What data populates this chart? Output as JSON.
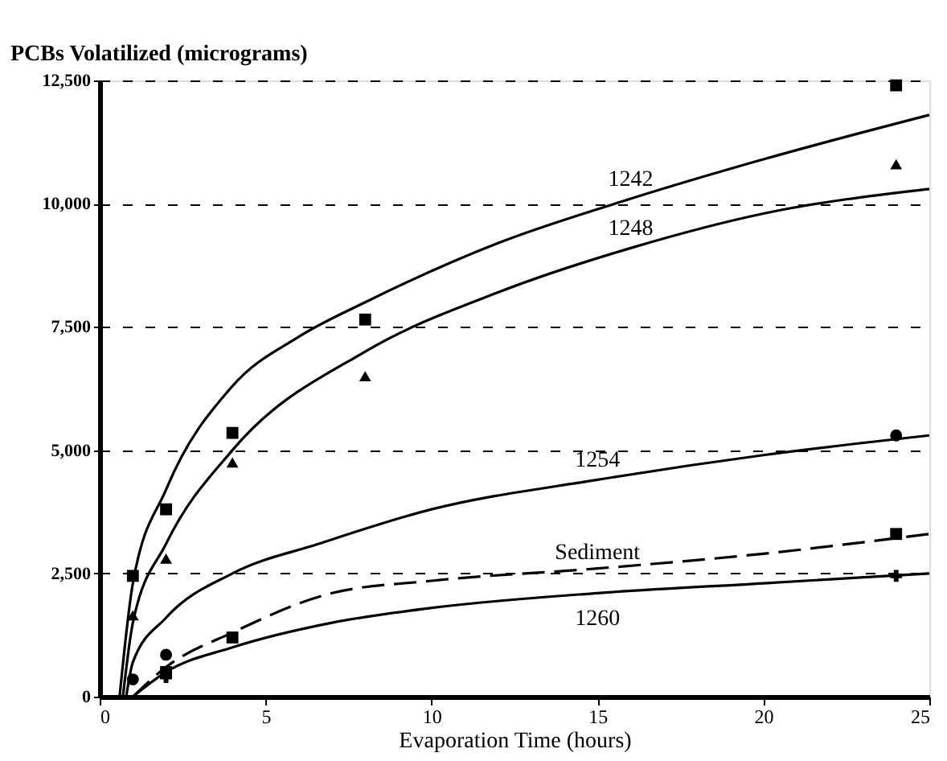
{
  "chart_data": {
    "type": "line",
    "xlabel": "Evaporation Time (hours)",
    "ylabel": "PCBs Volatilized (micrograms)",
    "xlim": [
      0,
      25
    ],
    "xticks": [
      0,
      5,
      10,
      15,
      20,
      25
    ],
    "ylim": [
      0,
      12500
    ],
    "yticks": [
      0,
      {
        "value": 2500,
        "label": "2,500"
      },
      {
        "value": 5000,
        "label": "5,000"
      },
      {
        "value": 7500,
        "label": "7,500"
      },
      {
        "value": 10000,
        "label": "10,000"
      },
      {
        "value": 12500,
        "label": "12,500"
      }
    ],
    "grid": "y",
    "series": [
      {
        "color": "#000000",
        "line_style": "solid",
        "x": [
          0.6,
          1,
          2,
          4,
          6,
          8,
          12,
          16,
          20,
          25
        ],
        "values": [
          0,
          2300,
          4200,
          6300,
          7300,
          8000,
          9200,
          10100,
          10900,
          11800
        ]
      },
      {
        "color": "#000000",
        "line_style": "solid",
        "x": [
          0.7,
          1,
          2,
          4,
          8,
          12,
          16,
          20,
          25
        ],
        "values": [
          0,
          1500,
          3100,
          5000,
          7000,
          8200,
          9100,
          9800,
          10300
        ]
      },
      {
        "color": "#000000",
        "line_style": "solid",
        "x": [
          0.8,
          1,
          2,
          4,
          6.6,
          10,
          15,
          20,
          25
        ],
        "values": [
          0,
          700,
          1600,
          2500,
          3100,
          3800,
          4400,
          4900,
          5300
        ]
      },
      {
        "color": "#000000",
        "line_style": "dashed",
        "x": [
          1,
          2,
          4,
          7,
          10,
          15,
          20,
          25
        ],
        "values": [
          0,
          600,
          1300,
          2100,
          2350,
          2600,
          2900,
          3300
        ]
      },
      {
        "color": "#000000",
        "line_style": "solid",
        "x": [
          1,
          2,
          4,
          7,
          10,
          15,
          20,
          25
        ],
        "values": [
          0,
          500,
          1000,
          1500,
          1800,
          2100,
          2300,
          2500
        ]
      },
      {
        "type": "scatter",
        "color": "#000000",
        "marker": "square",
        "x": [
          1,
          2,
          4,
          8,
          24
        ],
        "values": [
          2450,
          3800,
          5350,
          7650,
          12400
        ]
      },
      {
        "type": "scatter",
        "color": "#000000",
        "marker": "triangle",
        "x": [
          1,
          2,
          4,
          8,
          24
        ],
        "values": [
          1650,
          2800,
          4750,
          6500,
          10800
        ]
      },
      {
        "type": "scatter",
        "color": "#000000",
        "marker": "circle",
        "x": [
          1,
          2,
          24
        ],
        "values": [
          350,
          850,
          5300
        ]
      },
      {
        "type": "scatter",
        "color": "#000000",
        "marker": "square",
        "x": [
          2,
          4,
          24
        ],
        "values": [
          500,
          1200,
          3300
        ]
      },
      {
        "type": "scatter",
        "color": "#000000",
        "marker": "cross",
        "x": [
          2,
          24
        ],
        "values": [
          400,
          2450
        ]
      }
    ],
    "annotations": [
      "1242",
      "1248",
      "1254",
      "Sediment",
      "1260"
    ]
  }
}
